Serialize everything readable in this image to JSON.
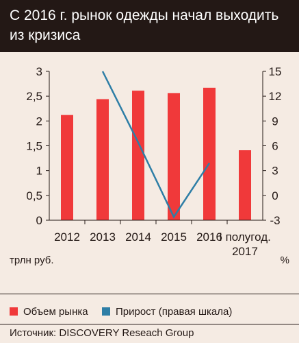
{
  "header": {
    "title": "С 2016 г. рынок одежды начал выходить из кризиса"
  },
  "units": {
    "left": "трлн руб.",
    "right": "%"
  },
  "legend": [
    {
      "label": "Объем рынка",
      "color": "#f0393a"
    },
    {
      "label": "Прирост (правая шкала)",
      "color": "#2e7ea6"
    }
  ],
  "source": "Источник: DISCOVERY Reseach Group",
  "chart_data": {
    "type": "bar",
    "categories": [
      "2012",
      "2013",
      "2014",
      "2015",
      "2016",
      "I полугод. 2017"
    ],
    "category_lines": [
      [
        "2012"
      ],
      [
        "2013"
      ],
      [
        "2014"
      ],
      [
        "2015"
      ],
      [
        "2016"
      ],
      [
        "I полугод.",
        "2017"
      ]
    ],
    "series": [
      {
        "name": "Объем рынка",
        "type": "bar",
        "axis": "left",
        "color": "#f0393a",
        "values": [
          2.12,
          2.44,
          2.61,
          2.56,
          2.67,
          1.41
        ]
      },
      {
        "name": "Прирост (правая шкала)",
        "type": "line",
        "axis": "right",
        "color": "#2e7ea6",
        "values": [
          null,
          15.0,
          6.4,
          -2.6,
          3.9,
          null
        ]
      }
    ],
    "left_axis": {
      "ylim": [
        0,
        3
      ],
      "ticks": [
        "0",
        "0,5",
        "1",
        "1,5",
        "2",
        "2,5",
        "3"
      ],
      "tick_values": [
        0,
        0.5,
        1,
        1.5,
        2,
        2.5,
        3
      ]
    },
    "right_axis": {
      "ylim": [
        -3,
        15
      ],
      "ticks": [
        "-3",
        "0",
        "3",
        "6",
        "9",
        "12",
        "15"
      ],
      "tick_values": [
        -3,
        0,
        3,
        6,
        9,
        12,
        15
      ]
    },
    "grid": false
  }
}
